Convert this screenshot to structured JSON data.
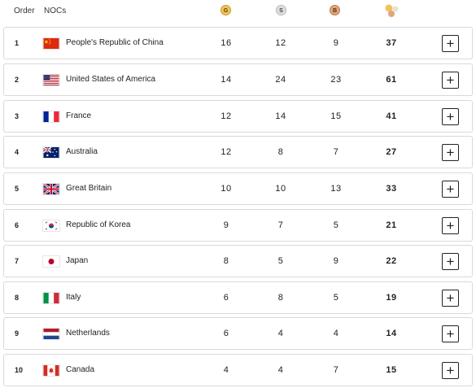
{
  "header": {
    "order_label": "Order",
    "nocs_label": "NOCs",
    "gold_label": "G",
    "silver_label": "S",
    "bronze_label": "B"
  },
  "colors": {
    "gold": "#f0c35a",
    "silver": "#dedede",
    "bronze": "#dfa67a"
  },
  "rows": [
    {
      "order": "1",
      "noc": "People's Republic of China",
      "flag": "china-flag-icon",
      "gold": "16",
      "silver": "12",
      "bronze": "9",
      "total": "37",
      "expand_label": "+"
    },
    {
      "order": "2",
      "noc": "United States of America",
      "flag": "usa-flag-icon",
      "gold": "14",
      "silver": "24",
      "bronze": "23",
      "total": "61",
      "expand_label": "+"
    },
    {
      "order": "3",
      "noc": "France",
      "flag": "france-flag-icon",
      "gold": "12",
      "silver": "14",
      "bronze": "15",
      "total": "41",
      "expand_label": "+"
    },
    {
      "order": "4",
      "noc": "Australia",
      "flag": "australia-flag-icon",
      "gold": "12",
      "silver": "8",
      "bronze": "7",
      "total": "27",
      "expand_label": "+"
    },
    {
      "order": "5",
      "noc": "Great Britain",
      "flag": "great-britain-flag-icon",
      "gold": "10",
      "silver": "10",
      "bronze": "13",
      "total": "33",
      "expand_label": "+"
    },
    {
      "order": "6",
      "noc": "Republic of Korea",
      "flag": "korea-flag-icon",
      "gold": "9",
      "silver": "7",
      "bronze": "5",
      "total": "21",
      "expand_label": "+"
    },
    {
      "order": "7",
      "noc": "Japan",
      "flag": "japan-flag-icon",
      "gold": "8",
      "silver": "5",
      "bronze": "9",
      "total": "22",
      "expand_label": "+"
    },
    {
      "order": "8",
      "noc": "Italy",
      "flag": "italy-flag-icon",
      "gold": "6",
      "silver": "8",
      "bronze": "5",
      "total": "19",
      "expand_label": "+"
    },
    {
      "order": "9",
      "noc": "Netherlands",
      "flag": "netherlands-flag-icon",
      "gold": "6",
      "silver": "4",
      "bronze": "4",
      "total": "14",
      "expand_label": "+"
    },
    {
      "order": "10",
      "noc": "Canada",
      "flag": "canada-flag-icon",
      "gold": "4",
      "silver": "4",
      "bronze": "7",
      "total": "15",
      "expand_label": "+"
    }
  ]
}
